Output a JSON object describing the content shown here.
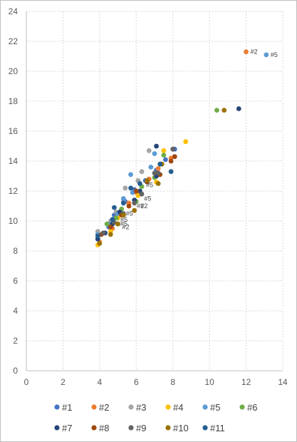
{
  "chart_data": {
    "type": "scatter",
    "title": "",
    "xlabel": "",
    "ylabel": "",
    "xlim": [
      0,
      14
    ],
    "ylim": [
      0,
      24
    ],
    "x_ticks": [
      "0",
      "2",
      "4",
      "6",
      "8",
      "10",
      "12",
      "14"
    ],
    "y_ticks": [
      "0",
      "2",
      "4",
      "6",
      "8",
      "10",
      "12",
      "14",
      "16",
      "18",
      "20",
      "22",
      "24"
    ],
    "grid": true,
    "legend_position": "bottom",
    "series": [
      {
        "name": "#1",
        "color": "#4472C4",
        "points": [
          [
            3.9,
            8.8
          ],
          [
            4.5,
            9.6
          ],
          [
            4.8,
            10.4
          ],
          [
            5.4,
            11.3
          ],
          [
            5.9,
            12.1
          ],
          [
            6.5,
            12.7
          ],
          [
            7.1,
            13.4
          ],
          [
            7.6,
            14.1
          ],
          [
            8.1,
            14.8
          ]
        ]
      },
      {
        "name": "#2",
        "color": "#ED7D31",
        "points": [
          [
            4.0,
            8.6
          ],
          [
            4.7,
            9.5
          ],
          [
            5.0,
            10.3
          ],
          [
            5.6,
            11.2
          ],
          [
            6.0,
            11.9
          ],
          [
            6.7,
            12.8
          ],
          [
            7.2,
            13.5
          ],
          [
            7.9,
            14.2
          ],
          [
            12.0,
            21.3
          ]
        ]
      },
      {
        "name": "#3",
        "color": "#A5A5A5",
        "points": [
          [
            3.9,
            9.3
          ],
          [
            4.6,
            10.0
          ],
          [
            4.9,
            10.6
          ],
          [
            5.3,
            11.3
          ],
          [
            5.4,
            12.2
          ],
          [
            6.1,
            12.7
          ],
          [
            6.3,
            13.3
          ],
          [
            6.7,
            14.7
          ]
        ]
      },
      {
        "name": "#4",
        "color": "#FFC000",
        "points": [
          [
            3.9,
            8.4
          ],
          [
            4.6,
            9.3
          ],
          [
            5.0,
            10.2
          ],
          [
            5.6,
            11.0
          ],
          [
            6.1,
            11.7
          ],
          [
            7.1,
            12.6
          ],
          [
            7.5,
            14.7
          ],
          [
            8.7,
            15.3
          ]
        ]
      },
      {
        "name": "#5",
        "color": "#5B9BD5",
        "points": [
          [
            3.9,
            9.1
          ],
          [
            4.5,
            9.8
          ],
          [
            5.0,
            10.5
          ],
          [
            5.3,
            11.5
          ],
          [
            5.8,
            11.9
          ],
          [
            5.7,
            13.1
          ],
          [
            6.8,
            13.6
          ],
          [
            7.0,
            14.5
          ],
          [
            13.1,
            21.1
          ]
        ]
      },
      {
        "name": "#6",
        "color": "#70AD47",
        "points": [
          [
            4.4,
            9.8
          ],
          [
            4.9,
            10.2
          ],
          [
            5.2,
            10.8
          ],
          [
            6.0,
            11.3
          ],
          [
            6.3,
            12.3
          ],
          [
            7.0,
            12.9
          ],
          [
            7.5,
            14.4
          ],
          [
            10.4,
            17.4
          ]
        ]
      },
      {
        "name": "#7",
        "color": "#264478",
        "points": [
          [
            3.9,
            8.8
          ],
          [
            4.3,
            9.2
          ],
          [
            4.7,
            9.8
          ],
          [
            5.1,
            10.6
          ],
          [
            5.9,
            11.4
          ],
          [
            6.2,
            12.0
          ],
          [
            7.1,
            13.0
          ],
          [
            7.1,
            15.0
          ],
          [
            11.6,
            17.5
          ]
        ]
      },
      {
        "name": "#8",
        "color": "#9E480E",
        "points": [
          [
            4.1,
            9.1
          ],
          [
            4.6,
            9.6
          ],
          [
            5.2,
            10.4
          ],
          [
            5.6,
            11.0
          ],
          [
            6.0,
            12.0
          ],
          [
            6.6,
            12.6
          ],
          [
            7.3,
            13.1
          ],
          [
            7.9,
            14.0
          ],
          [
            8.1,
            14.3
          ]
        ]
      },
      {
        "name": "#9",
        "color": "#636363",
        "points": [
          [
            4.2,
            9.2
          ],
          [
            4.8,
            9.9
          ],
          [
            5.3,
            10.5
          ],
          [
            5.9,
            11.2
          ],
          [
            6.3,
            11.8
          ],
          [
            7.0,
            13.2
          ],
          [
            7.2,
            13.2
          ],
          [
            8.0,
            14.8
          ]
        ]
      },
      {
        "name": "#10",
        "color": "#997300",
        "points": [
          [
            4.0,
            8.5
          ],
          [
            4.6,
            9.1
          ],
          [
            5.0,
            9.8
          ],
          [
            5.3,
            10.4
          ],
          [
            5.9,
            10.7
          ],
          [
            6.6,
            12.7
          ],
          [
            7.2,
            12.5
          ],
          [
            7.4,
            13.8
          ],
          [
            10.8,
            17.4
          ]
        ]
      },
      {
        "name": "#11",
        "color": "#255E91",
        "points": [
          [
            3.9,
            9.0
          ],
          [
            4.7,
            10.1
          ],
          [
            4.8,
            10.9
          ],
          [
            5.3,
            11.2
          ],
          [
            5.7,
            12.2
          ],
          [
            6.2,
            12.5
          ],
          [
            7.3,
            13.8
          ],
          [
            7.9,
            13.3
          ]
        ]
      }
    ],
    "annotations": [
      {
        "text": "#2",
        "x": 12.0,
        "y": 21.3
      },
      {
        "text": "#5",
        "x": 13.1,
        "y": 21.1
      },
      {
        "text": "#5",
        "x": 6.3,
        "y": 12.4
      },
      {
        "text": "#5",
        "x": 6.2,
        "y": 11.5
      },
      {
        "text": "#2",
        "x": 5.8,
        "y": 11.0
      },
      {
        "text": "#2",
        "x": 6.0,
        "y": 11.0
      },
      {
        "text": "#5",
        "x": 5.2,
        "y": 10.5
      },
      {
        "text": "#5",
        "x": 4.9,
        "y": 10.1
      },
      {
        "text": "#5",
        "x": 4.9,
        "y": 9.8
      },
      {
        "text": "#2",
        "x": 5.0,
        "y": 9.6
      }
    ]
  }
}
